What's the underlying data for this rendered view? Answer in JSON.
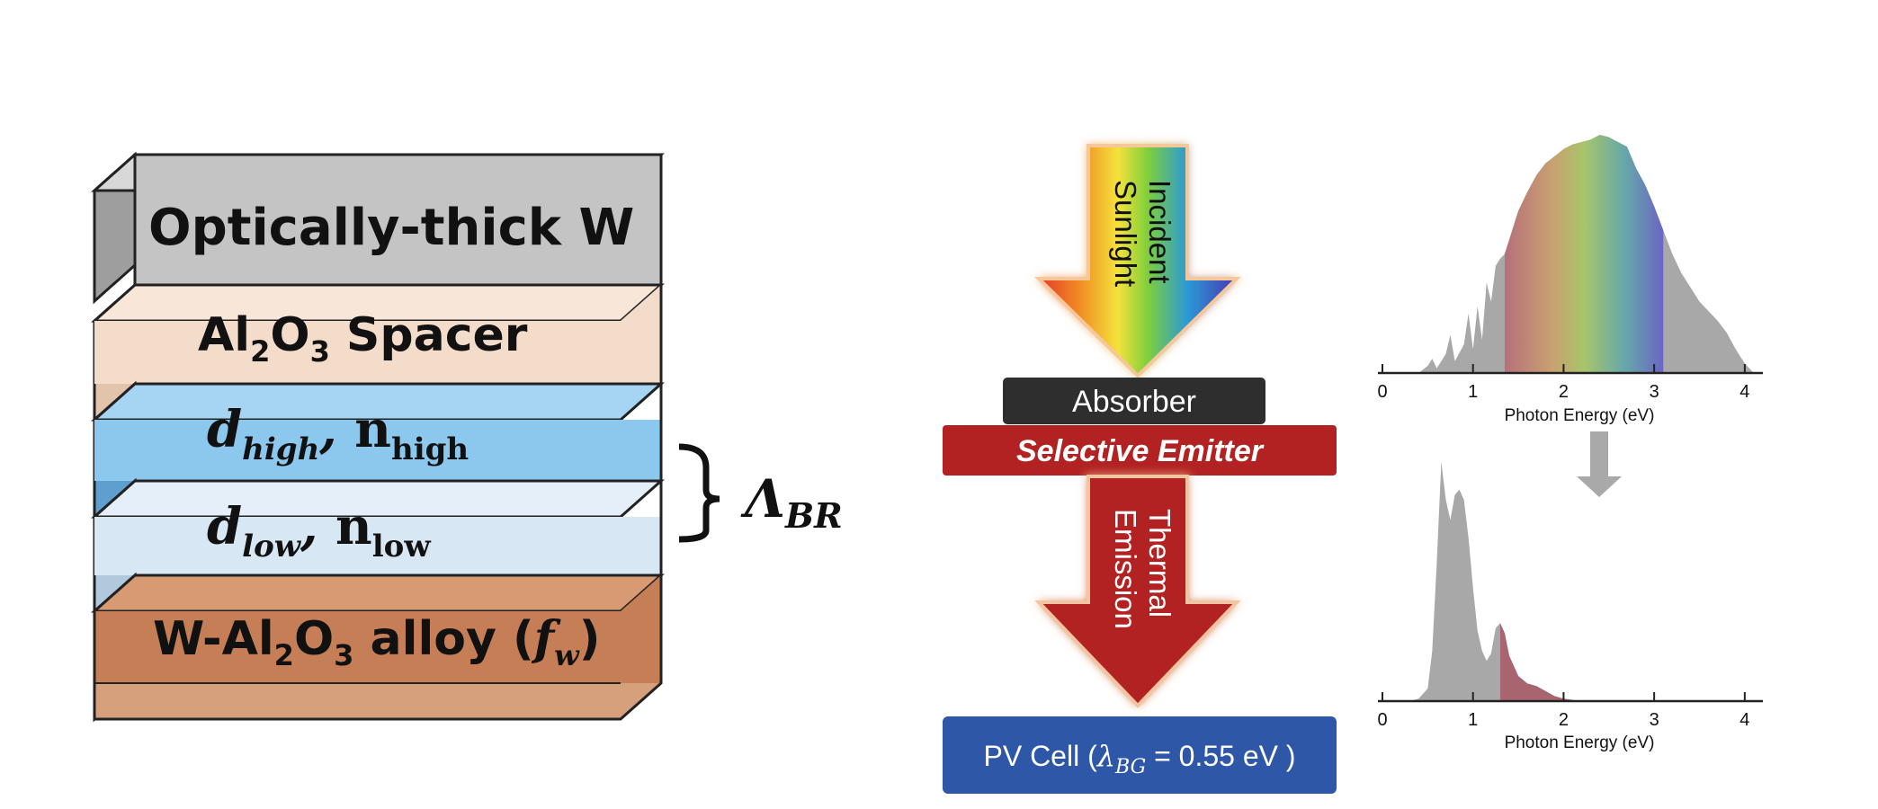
{
  "stack": {
    "layers": [
      {
        "id": "w",
        "label": "Optically-thick W",
        "front": "#c4c4c4",
        "top": "#d8d8d8",
        "side": "#9e9e9e"
      },
      {
        "id": "spacer",
        "label_parts": [
          "Al",
          "2",
          "O",
          "3",
          " Spacer"
        ],
        "front": "#f4dccb",
        "top": "#f8e6d8",
        "side": "#e2c4ad"
      },
      {
        "id": "high",
        "label_d": "d",
        "label_d_sub": "high",
        "label_n": "n",
        "label_n_sub": "high",
        "front": "#8cc7ee",
        "top": "#a6d4f3",
        "side": "#5f9fd0"
      },
      {
        "id": "low",
        "label_d": "d",
        "label_d_sub": "low",
        "label_n": "n",
        "label_n_sub": "low",
        "front": "#d7e7f4",
        "top": "#e4effa",
        "side": "#b2c9dd"
      },
      {
        "id": "alloy",
        "label_parts": [
          "W-Al",
          "2",
          "O",
          "3",
          " alloy (",
          "f",
          "w",
          ")"
        ],
        "front": "#c57e56",
        "top": "#d89a72",
        "side": "#a55f3a"
      }
    ],
    "bragg_label": "Λ",
    "bragg_sub": "BR"
  },
  "flow": {
    "incident_l1": "Incident",
    "incident_l2": "Sunlight",
    "absorber": "Absorber",
    "emitter": "Selective Emitter",
    "thermal_l1": "Thermal",
    "thermal_l2": "Emission",
    "pv_prefix": "PV Cell (",
    "pv_lambda": "λ",
    "pv_sub": "BG",
    "pv_suffix": " = 0.55 eV )",
    "colors": {
      "absorber": "#2e2e2e",
      "emitter": "#b22222",
      "pv": "#2e57a7",
      "thermal": "#b22222"
    }
  },
  "chart_data": [
    {
      "type": "area",
      "title": "",
      "xlabel": "Photon Energy (eV)",
      "ylabel": "",
      "xlim": [
        0,
        4.2
      ],
      "ylim": [
        0,
        1
      ],
      "xticks": [
        0,
        1,
        2,
        3,
        4
      ],
      "grid": false,
      "x": [
        0.0,
        0.4,
        0.5,
        0.55,
        0.6,
        0.7,
        0.75,
        0.8,
        0.9,
        0.95,
        1.0,
        1.05,
        1.1,
        1.15,
        1.2,
        1.25,
        1.3,
        1.35,
        1.4,
        1.5,
        1.6,
        1.7,
        1.8,
        1.9,
        2.0,
        2.1,
        2.2,
        2.3,
        2.4,
        2.5,
        2.6,
        2.7,
        2.8,
        2.9,
        3.0,
        3.1,
        3.2,
        3.3,
        3.4,
        3.5,
        3.6,
        3.7,
        3.8,
        3.9,
        4.0,
        4.1
      ],
      "y": [
        0.0,
        0.0,
        0.03,
        0.06,
        0.02,
        0.08,
        0.16,
        0.05,
        0.12,
        0.25,
        0.1,
        0.28,
        0.14,
        0.38,
        0.3,
        0.45,
        0.48,
        0.5,
        0.56,
        0.68,
        0.76,
        0.83,
        0.88,
        0.91,
        0.94,
        0.96,
        0.97,
        0.98,
        1.0,
        0.99,
        0.97,
        0.95,
        0.86,
        0.79,
        0.7,
        0.6,
        0.5,
        0.42,
        0.36,
        0.3,
        0.26,
        0.22,
        0.17,
        0.1,
        0.04,
        0.0
      ],
      "highlight_range": [
        1.35,
        3.1
      ]
    },
    {
      "type": "area",
      "title": "",
      "xlabel": "Photon Energy (eV)",
      "ylabel": "",
      "xlim": [
        0,
        4.2
      ],
      "ylim": [
        0,
        1
      ],
      "xticks": [
        0,
        1,
        2,
        3,
        4
      ],
      "grid": false,
      "x": [
        0.0,
        0.3,
        0.4,
        0.5,
        0.55,
        0.6,
        0.65,
        0.7,
        0.75,
        0.8,
        0.85,
        0.9,
        0.95,
        1.0,
        1.05,
        1.1,
        1.15,
        1.2,
        1.25,
        1.3,
        1.35,
        1.4,
        1.5,
        1.6,
        1.7,
        1.8,
        1.9,
        2.0,
        2.2,
        4.1
      ],
      "y": [
        0.0,
        0.0,
        0.01,
        0.05,
        0.2,
        0.55,
        0.95,
        0.8,
        0.72,
        0.82,
        0.84,
        0.8,
        0.65,
        0.45,
        0.28,
        0.2,
        0.16,
        0.19,
        0.29,
        0.31,
        0.27,
        0.18,
        0.1,
        0.07,
        0.06,
        0.04,
        0.02,
        0.01,
        0.0,
        0.0
      ],
      "highlight_range": [
        1.3,
        2.2
      ]
    }
  ]
}
